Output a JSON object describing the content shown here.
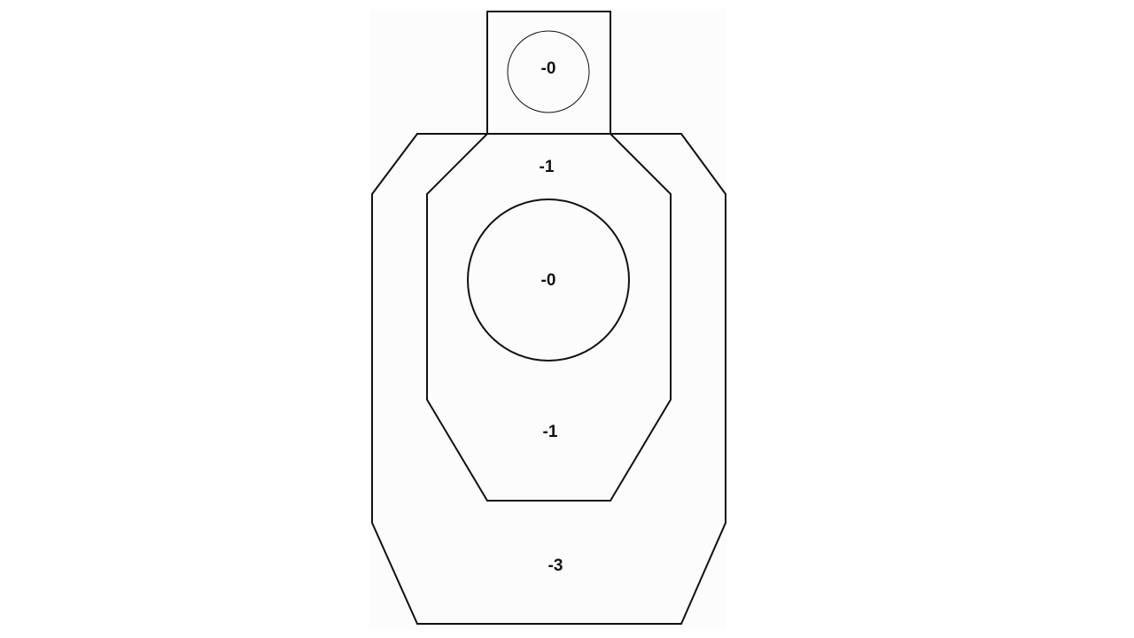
{
  "target": {
    "colors": {
      "line": "#111111",
      "paper": "#fcfcfc",
      "background": "#ffffff"
    },
    "zones": {
      "head_circle": {
        "score": "-0"
      },
      "upper_a_zone": {
        "score": "-1"
      },
      "body_circle": {
        "score": "-0"
      },
      "lower_a_zone": {
        "score": "-1"
      },
      "outer_d_zone": {
        "score": "-3"
      }
    }
  }
}
